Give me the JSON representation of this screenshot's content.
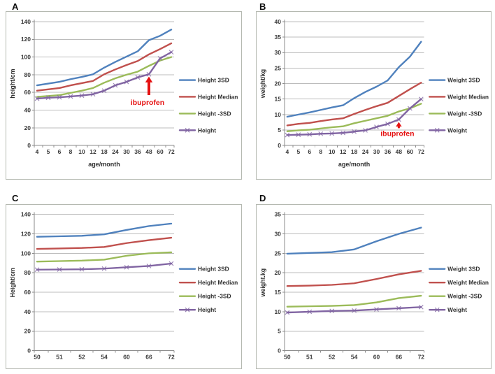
{
  "figure": {
    "panel_labels": [
      "A",
      "B",
      "C",
      "D"
    ],
    "annotation_color": "#e51212",
    "grid_color": "#bcbcbc",
    "axis_color": "#8b8b8b",
    "text_color": "#3a3a3a",
    "border_color": "#b5b9b1"
  },
  "chart_data": [
    {
      "panel": "A",
      "type": "line",
      "xlabel": "age/month",
      "ylabel": "height/cm",
      "ylim": [
        0,
        140
      ],
      "ytick_step": 20,
      "grid": true,
      "legend_position": "right",
      "categories": [
        "4",
        "5",
        "6",
        "8",
        "10",
        "12",
        "18",
        "24",
        "30",
        "36",
        "48",
        "60",
        "72"
      ],
      "series": [
        {
          "name": "Height 3SD",
          "color": "#4f81bd",
          "marker": "none",
          "values": [
            68,
            70,
            72,
            75,
            77.5,
            80.5,
            88,
            94.5,
            100.5,
            106.5,
            119,
            124,
            131
          ]
        },
        {
          "name": "Height Median",
          "color": "#c0504d",
          "marker": "none",
          "values": [
            62,
            63.5,
            65,
            68,
            70.5,
            73,
            80.5,
            86,
            91,
            95.5,
            103,
            109,
            115.5
          ]
        },
        {
          "name": "Height -3SD",
          "color": "#9bbb59",
          "marker": "none",
          "values": [
            55,
            56,
            57,
            59.5,
            62,
            65,
            71,
            76,
            80,
            83.5,
            90,
            96,
            100
          ]
        },
        {
          "name": "Height",
          "color": "#8064a2",
          "marker": "x",
          "values": [
            53,
            54,
            54.5,
            55.5,
            56.5,
            58,
            62,
            68,
            72,
            77,
            80.5,
            98.5,
            105.5
          ]
        }
      ],
      "annotation": {
        "text": "ibuprofen",
        "x_category": "48",
        "arrow_tip_y": 78,
        "arrow_base_y": 57,
        "text_y": 46
      }
    },
    {
      "panel": "B",
      "type": "line",
      "xlabel": "age/month",
      "ylabel": "weight/kg",
      "ylim": [
        0,
        40
      ],
      "ytick_step": 5,
      "grid": true,
      "legend_position": "right",
      "categories": [
        "4",
        "5",
        "6",
        "8",
        "10",
        "12",
        "18",
        "24",
        "30",
        "36",
        "48",
        "60",
        "72"
      ],
      "series": [
        {
          "name": "Weight 3SD",
          "color": "#4f81bd",
          "marker": "none",
          "values": [
            9.3,
            10,
            10.7,
            11.5,
            12.3,
            13,
            15.3,
            17.3,
            19,
            21,
            25.3,
            28.7,
            33.5
          ]
        },
        {
          "name": "Weight Median",
          "color": "#c0504d",
          "marker": "none",
          "values": [
            6.5,
            7,
            7.3,
            7.9,
            8.4,
            8.8,
            10.2,
            11.5,
            12.7,
            13.8,
            16,
            18.2,
            20.3
          ]
        },
        {
          "name": "Weight -3SD",
          "color": "#9bbb59",
          "marker": "none",
          "values": [
            4.6,
            4.9,
            5.1,
            5.5,
            5.9,
            6.2,
            7.2,
            8,
            8.8,
            9.6,
            11,
            12,
            13.5
          ]
        },
        {
          "name": "Weight",
          "color": "#8064a2",
          "marker": "x",
          "values": [
            3.4,
            3.5,
            3.6,
            3.8,
            3.9,
            4.1,
            4.5,
            4.9,
            6,
            7,
            8.4,
            12,
            15
          ]
        }
      ],
      "annotation": {
        "text": "ibuprofen",
        "x_category": "48",
        "arrow_tip_y": 7.6,
        "arrow_base_y": 5.6,
        "text_y": 3.1
      }
    },
    {
      "panel": "C",
      "type": "line",
      "xlabel": "",
      "ylabel": "Height/cm",
      "ylim": [
        0,
        140
      ],
      "ytick_step": 20,
      "grid": true,
      "legend_position": "right",
      "categories": [
        "50",
        "51",
        "52",
        "54",
        "60",
        "66",
        "72"
      ],
      "series": [
        {
          "name": "Height 3SD",
          "color": "#4f81bd",
          "marker": "none",
          "values": [
            117,
            117.5,
            118,
            119.5,
            124,
            128,
            130.5
          ]
        },
        {
          "name": "Height Median",
          "color": "#c0504d",
          "marker": "none",
          "values": [
            104.5,
            105,
            105.5,
            106.5,
            110.5,
            113.5,
            116
          ]
        },
        {
          "name": "Height -3SD",
          "color": "#9bbb59",
          "marker": "none",
          "values": [
            91.5,
            92,
            92.5,
            93.5,
            97.5,
            100,
            101
          ]
        },
        {
          "name": "Height",
          "color": "#8064a2",
          "marker": "x",
          "values": [
            83.2,
            83.4,
            83.6,
            84.3,
            85.7,
            87,
            89.5
          ]
        }
      ],
      "annotation": null
    },
    {
      "panel": "D",
      "type": "line",
      "xlabel": "",
      "ylabel": "weight.kg",
      "ylim": [
        0,
        35
      ],
      "ytick_step": 5,
      "grid": true,
      "legend_position": "right",
      "categories": [
        "50",
        "51",
        "52",
        "54",
        "60",
        "66",
        "72"
      ],
      "series": [
        {
          "name": "Weight 3SD",
          "color": "#4f81bd",
          "marker": "none",
          "values": [
            24.9,
            25.1,
            25.3,
            26,
            28.1,
            30,
            31.6
          ]
        },
        {
          "name": "Weight Median",
          "color": "#c0504d",
          "marker": "none",
          "values": [
            16.6,
            16.7,
            16.9,
            17.3,
            18.4,
            19.6,
            20.5
          ]
        },
        {
          "name": "Weight -3SD",
          "color": "#9bbb59",
          "marker": "none",
          "values": [
            11.3,
            11.4,
            11.5,
            11.7,
            12.4,
            13.5,
            14.1
          ]
        },
        {
          "name": "Weight",
          "color": "#8064a2",
          "marker": "x",
          "values": [
            9.8,
            10,
            10.2,
            10.3,
            10.6,
            10.9,
            11.2
          ]
        }
      ],
      "annotation": null
    }
  ]
}
